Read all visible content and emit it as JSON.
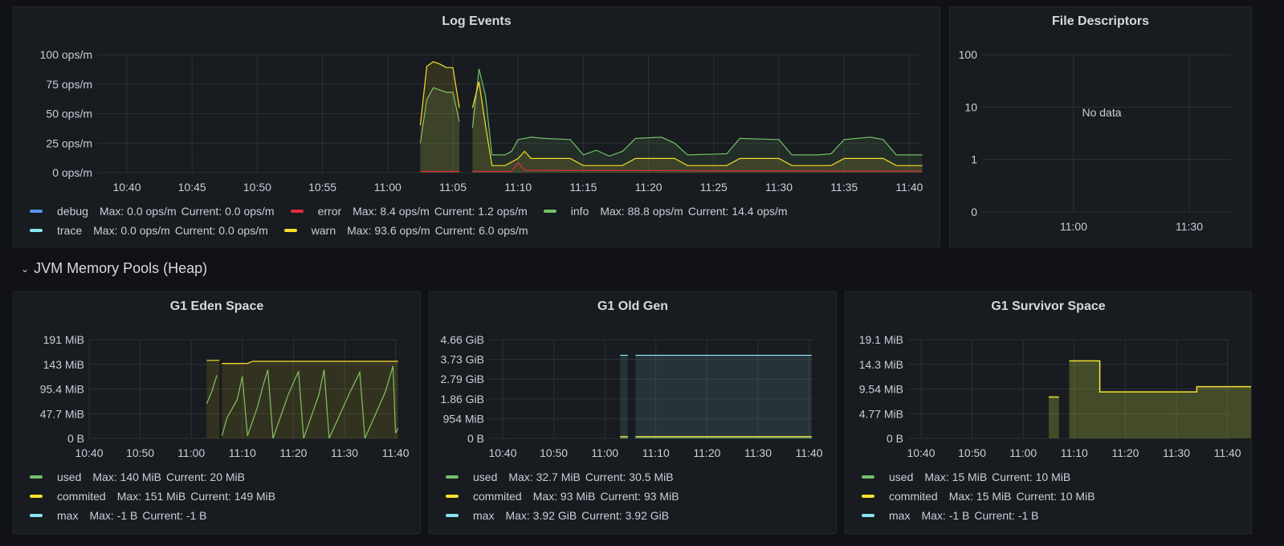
{
  "colors": {
    "blue": "#5794f2",
    "red": "#e02f44",
    "green": "#73bf69",
    "cyan": "#8ae3f5",
    "yellow": "#fade2a",
    "grid": "#2c3035",
    "axis": "#c7d0d9"
  },
  "log_events": {
    "title": "Log Events",
    "y_ticks": [
      "100 ops/m",
      "75 ops/m",
      "50 ops/m",
      "25 ops/m",
      "0 ops/m"
    ],
    "x_ticks": [
      "10:40",
      "10:45",
      "10:50",
      "10:55",
      "11:00",
      "11:05",
      "11:10",
      "11:15",
      "11:20",
      "11:25",
      "11:30",
      "11:35",
      "11:40"
    ],
    "legend_rows": [
      [
        {
          "key": "debug",
          "name": "debug",
          "color": "#5794f2",
          "max": "Max: 0.0 ops/m",
          "current": "Current: 0.0 ops/m"
        },
        {
          "key": "error",
          "name": "error",
          "color": "#e02f44",
          "max": "Max: 8.4 ops/m",
          "current": "Current: 1.2 ops/m"
        },
        {
          "key": "info",
          "name": "info",
          "color": "#73bf69",
          "max": "Max: 88.8 ops/m",
          "current": "Current: 14.4 ops/m"
        }
      ],
      [
        {
          "key": "trace",
          "name": "trace",
          "color": "#8ae3f5",
          "max": "Max: 0.0 ops/m",
          "current": "Current: 0.0 ops/m"
        },
        {
          "key": "warn",
          "name": "warn",
          "color": "#fade2a",
          "max": "Max: 93.6 ops/m",
          "current": "Current: 6.0 ops/m"
        }
      ]
    ]
  },
  "file_descriptors": {
    "title": "File Descriptors",
    "y_ticks": [
      "100",
      "10",
      "1",
      "0"
    ],
    "x_ticks": [
      "11:00",
      "11:30"
    ],
    "no_data": "No data"
  },
  "row_header": {
    "title": "JVM Memory Pools (Heap)"
  },
  "eden": {
    "title": "G1 Eden Space",
    "y_ticks": [
      "191 MiB",
      "143 MiB",
      "95.4 MiB",
      "47.7 MiB",
      "0 B"
    ],
    "x_ticks": [
      "10:40",
      "10:50",
      "11:00",
      "11:10",
      "11:20",
      "11:30",
      "11:40"
    ],
    "legend": [
      {
        "name": "used",
        "color": "#73bf69",
        "max": "Max: 140 MiB",
        "current": "Current: 20 MiB"
      },
      {
        "name": "commited",
        "color": "#fade2a",
        "max": "Max: 151 MiB",
        "current": "Current: 149 MiB"
      },
      {
        "name": "max",
        "color": "#8ae3f5",
        "max": "Max: -1 B",
        "current": "Current: -1 B"
      }
    ]
  },
  "oldgen": {
    "title": "G1 Old Gen",
    "y_ticks": [
      "4.66 GiB",
      "3.73 GiB",
      "2.79 GiB",
      "1.86 GiB",
      "954 MiB",
      "0 B"
    ],
    "x_ticks": [
      "10:40",
      "10:50",
      "11:00",
      "11:10",
      "11:20",
      "11:30",
      "11:40"
    ],
    "legend": [
      {
        "name": "used",
        "color": "#73bf69",
        "max": "Max: 32.7 MiB",
        "current": "Current: 30.5 MiB"
      },
      {
        "name": "commited",
        "color": "#fade2a",
        "max": "Max: 93 MiB",
        "current": "Current: 93 MiB"
      },
      {
        "name": "max",
        "color": "#8ae3f5",
        "max": "Max: 3.92 GiB",
        "current": "Current: 3.92 GiB"
      }
    ]
  },
  "survivor": {
    "title": "G1 Survivor Space",
    "y_ticks": [
      "19.1 MiB",
      "14.3 MiB",
      "9.54 MiB",
      "4.77 MiB",
      "0 B"
    ],
    "x_ticks": [
      "10:40",
      "10:50",
      "11:00",
      "11:10",
      "11:20",
      "11:30",
      "11:40"
    ],
    "legend": [
      {
        "name": "used",
        "color": "#73bf69",
        "max": "Max: 15 MiB",
        "current": "Current: 10 MiB"
      },
      {
        "name": "commited",
        "color": "#fade2a",
        "max": "Max: 15 MiB",
        "current": "Current: 10 MiB"
      },
      {
        "name": "max",
        "color": "#8ae3f5",
        "max": "Max: -1 B",
        "current": "Current: -1 B"
      }
    ]
  },
  "chart_data": [
    {
      "type": "line",
      "title": "Log Events",
      "x_unit": "time",
      "ylim": [
        0,
        100
      ],
      "series": [
        {
          "name": "info",
          "points": [
            [
              "11:02:30",
              25
            ],
            [
              "11:03",
              62
            ],
            [
              "11:03:30",
              72
            ],
            [
              "11:04",
              70
            ],
            [
              "11:04:30",
              68
            ],
            [
              "11:05",
              68
            ],
            [
              "11:05:30",
              43
            ],
            [
              "11:06:30",
              38
            ],
            [
              "11:07",
              88
            ],
            [
              "11:07:30",
              65
            ],
            [
              "11:08",
              15
            ],
            [
              "11:09",
              15
            ],
            [
              "11:09:30",
              18
            ],
            [
              "11:10",
              28
            ],
            [
              "11:11",
              30
            ],
            [
              "11:12",
              29
            ],
            [
              "11:14",
              28
            ],
            [
              "11:15",
              15
            ],
            [
              "11:16",
              19
            ],
            [
              "11:17",
              14
            ],
            [
              "11:18",
              18
            ],
            [
              "11:19",
              29
            ],
            [
              "11:21",
              30
            ],
            [
              "11:22",
              25
            ],
            [
              "11:23",
              15
            ],
            [
              "11:26",
              16
            ],
            [
              "11:27",
              29
            ],
            [
              "11:30",
              28
            ],
            [
              "11:31",
              15
            ],
            [
              "11:33",
              15
            ],
            [
              "11:34",
              16
            ],
            [
              "11:35",
              28
            ],
            [
              "11:37",
              30
            ],
            [
              "11:38",
              28
            ],
            [
              "11:39",
              15
            ],
            [
              "11:41",
              15
            ]
          ]
        },
        {
          "name": "warn",
          "points": [
            [
              "11:02:30",
              40
            ],
            [
              "11:03",
              90
            ],
            [
              "11:03:30",
              94
            ],
            [
              "11:04",
              92
            ],
            [
              "11:04:30",
              89
            ],
            [
              "11:05",
              89
            ],
            [
              "11:05:30",
              55
            ],
            [
              "11:06:30",
              55
            ],
            [
              "11:07",
              77
            ],
            [
              "11:07:30",
              40
            ],
            [
              "11:08",
              6
            ],
            [
              "11:09",
              6
            ],
            [
              "11:10",
              12
            ],
            [
              "11:10:30",
              18
            ],
            [
              "11:11",
              12
            ],
            [
              "11:14",
              12
            ],
            [
              "11:15",
              6
            ],
            [
              "11:18",
              6
            ],
            [
              "11:19",
              12
            ],
            [
              "11:22",
              12
            ],
            [
              "11:23",
              6
            ],
            [
              "11:26",
              6
            ],
            [
              "11:27",
              12
            ],
            [
              "11:30",
              12
            ],
            [
              "11:31",
              6
            ],
            [
              "11:34",
              6
            ],
            [
              "11:35",
              12
            ],
            [
              "11:38",
              12
            ],
            [
              "11:39",
              6
            ],
            [
              "11:41",
              6
            ]
          ]
        },
        {
          "name": "error",
          "points": [
            [
              "11:02:30",
              1
            ],
            [
              "11:05:30",
              1
            ],
            [
              "11:06:30",
              1
            ],
            [
              "11:09:30",
              1
            ],
            [
              "11:10",
              8.4
            ],
            [
              "11:10:30",
              2
            ],
            [
              "11:41",
              1.2
            ]
          ]
        },
        {
          "name": "debug",
          "points": [
            [
              "11:02:30",
              0
            ],
            [
              "11:41",
              0
            ]
          ]
        },
        {
          "name": "trace",
          "points": [
            [
              "11:02:30",
              0
            ],
            [
              "11:41",
              0
            ]
          ]
        }
      ]
    },
    {
      "type": "line",
      "title": "G1 Eden Space",
      "unit": "MiB",
      "ylim": [
        0,
        191
      ],
      "series": [
        {
          "name": "used",
          "points": [
            [
              "11:03",
              67
            ],
            [
              "11:04",
              90
            ],
            [
              "11:05",
              122
            ],
            [
              "11:06",
              5
            ],
            [
              "11:07",
              40
            ],
            [
              "11:09",
              75
            ],
            [
              "11:10",
              120
            ],
            [
              "11:11",
              5
            ],
            [
              "11:13",
              62
            ],
            [
              "11:14",
              100
            ],
            [
              "11:15",
              133
            ],
            [
              "11:16",
              0
            ],
            [
              "11:19",
              85
            ],
            [
              "11:21",
              130
            ],
            [
              "11:22",
              0
            ],
            [
              "11:25",
              85
            ],
            [
              "11:26",
              133
            ],
            [
              "11:27",
              0
            ],
            [
              "11:31",
              88
            ],
            [
              "11:33",
              128
            ],
            [
              "11:34",
              0
            ],
            [
              "11:38",
              90
            ],
            [
              "11:39.5",
              140
            ],
            [
              "11:40",
              10
            ],
            [
              "11:40.5",
              20
            ]
          ]
        },
        {
          "name": "commited",
          "points": [
            [
              "11:03",
              151
            ],
            [
              "11:05.5",
              151
            ],
            [
              "11:06",
              145
            ],
            [
              "11:11",
              145
            ],
            [
              "11:12",
              149
            ],
            [
              "11:40.5",
              149
            ]
          ]
        },
        {
          "name": "max",
          "points": []
        }
      ]
    },
    {
      "type": "line",
      "title": "G1 Old Gen",
      "unit": "GiB",
      "ylim": [
        0,
        4.66
      ],
      "series": [
        {
          "name": "used",
          "points": [
            [
              "11:03",
              0.032
            ],
            [
              "11:40.5",
              0.03
            ]
          ]
        },
        {
          "name": "commited",
          "points": [
            [
              "11:03",
              0.091
            ],
            [
              "11:40.5",
              0.091
            ]
          ]
        },
        {
          "name": "max",
          "points": [
            [
              "11:03",
              3.92
            ],
            [
              "11:40.5",
              3.92
            ]
          ]
        }
      ]
    },
    {
      "type": "line",
      "title": "G1 Survivor Space",
      "unit": "MiB",
      "ylim": [
        0,
        19.1
      ],
      "series": [
        {
          "name": "used",
          "points": [
            [
              "11:05",
              8
            ],
            [
              "11:07",
              8
            ],
            [
              "11:09",
              15
            ],
            [
              "11:14",
              15
            ],
            [
              "11:15",
              9
            ],
            [
              "11:33",
              9
            ],
            [
              "11:34",
              10
            ],
            [
              "11:50",
              10
            ]
          ]
        },
        {
          "name": "commited",
          "points": [
            [
              "11:05",
              8
            ],
            [
              "11:07",
              8
            ],
            [
              "11:09",
              15
            ],
            [
              "11:14",
              15
            ],
            [
              "11:15",
              9
            ],
            [
              "11:33",
              9
            ],
            [
              "11:34",
              10
            ],
            [
              "11:50",
              10
            ]
          ]
        },
        {
          "name": "max",
          "points": []
        }
      ]
    }
  ]
}
